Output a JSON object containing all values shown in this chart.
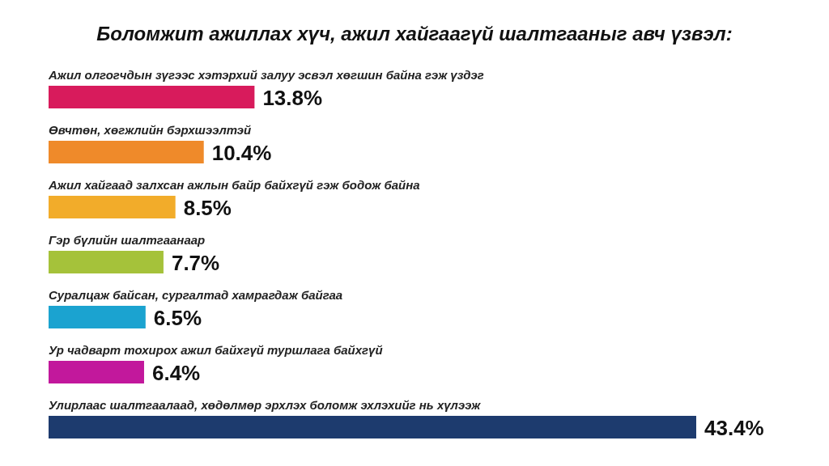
{
  "chart_data": {
    "type": "bar",
    "orientation": "horizontal",
    "title": "Боломжит ажиллах хүч, ажил хайгаагүй шалтгааныг авч үзвэл:",
    "categories": [
      "Ажил олгогчдын зүгээс хэтэрхий залуу эсвэл хөгшин байна гэж үздэг",
      "Өвчтөн, хөгжлийн бэрхшээлтэй",
      "Ажил хайгаад залхсан ажлын байр байхгүй гэж бодож байна",
      "Гэр бүлийн шалтгаанаар",
      "Суралцаж байсан, сургалтад хамрагдаж байгаа",
      "Ур чадварт тохирох ажил байхгүй туршлага байхгүй",
      "Улирлаас шалтгаалаад, хөдөлмөр эрхлэх боломж эхлэхийг нь хүлээж"
    ],
    "values": [
      13.8,
      10.4,
      8.5,
      7.7,
      6.5,
      6.4,
      43.4
    ],
    "colors": [
      "#d81b5c",
      "#ef8a2a",
      "#f2ac2a",
      "#a5c23a",
      "#1ba3d0",
      "#c2189c",
      "#1d3b6e"
    ],
    "value_labels": [
      "13.8%",
      "10.4%",
      "8.5%",
      "7.7%",
      "6.5%",
      "6.4%",
      "43.4%"
    ]
  }
}
